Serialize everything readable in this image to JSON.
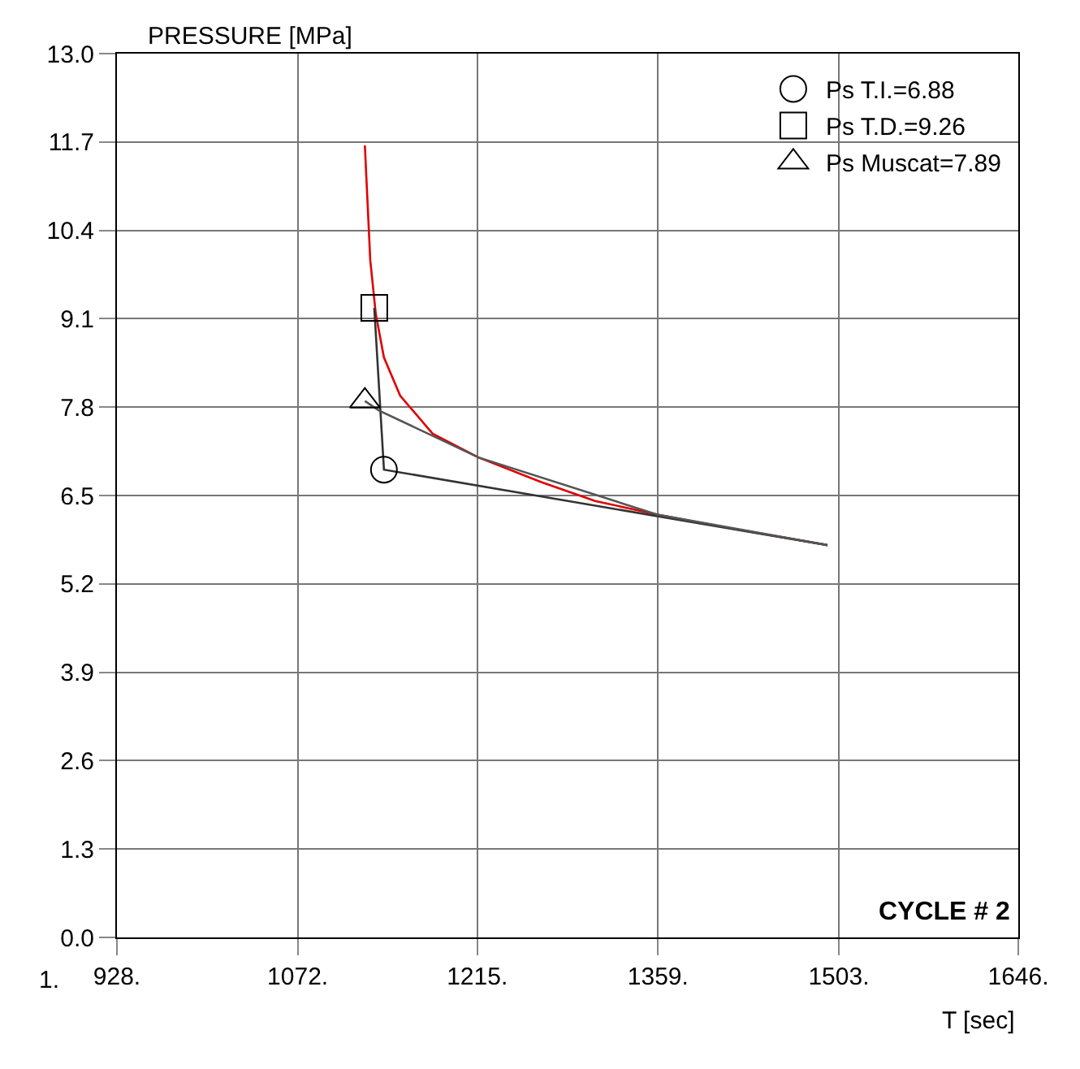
{
  "chart_data": {
    "type": "line",
    "xlabel": "T [sec]",
    "ylabel": "PRESSURE [MPa]",
    "xlim": [
      928,
      1646
    ],
    "xticks": [
      {
        "value": 928,
        "label": "928."
      },
      {
        "value": 1072,
        "label": "1072."
      },
      {
        "value": 1215,
        "label": "1215."
      },
      {
        "value": 1359,
        "label": "1359."
      },
      {
        "value": 1503,
        "label": "1503."
      },
      {
        "value": 1646,
        "label": "1646."
      }
    ],
    "ylim": [
      0,
      13
    ],
    "yticks": [
      {
        "value": 0,
        "label": "0.0"
      },
      1.3,
      2.6,
      3.9,
      5.2,
      6.5,
      7.8,
      9.1,
      10.4,
      11.7,
      {
        "value": 13,
        "label": "13.0"
      }
    ],
    "grid": true,
    "legend": "top right",
    "series": [
      {
        "color": "#e00000",
        "marker": "none",
        "x": [
          1125.5,
          1129.8,
          1134.2,
          1140.7,
          1153.6,
          1179.5,
          1216,
          1265.6,
          1308.9,
          1358.4,
          1416.6,
          1494
        ],
        "values": [
          11.65,
          9.96,
          9.17,
          8.53,
          7.97,
          7.41,
          7.06,
          6.7,
          6.42,
          6.22,
          6.02,
          5.77
        ]
      },
      {
        "color": "#333333",
        "marker": "none",
        "x": [
          1133,
          1140.7,
          1494
        ],
        "values": [
          9.26,
          6.88,
          5.77
        ]
      },
      {
        "color": "#555555",
        "marker": "none",
        "x": [
          1125.5,
          1136.7,
          1216,
          1358.4,
          1494
        ],
        "values": [
          7.89,
          7.75,
          7.06,
          6.22,
          5.77
        ]
      },
      {
        "type": "scatter",
        "name": "Ps T.I.=6.88",
        "color": "#000000",
        "marker": "circle",
        "x": [
          1140.7
        ],
        "values": [
          6.88
        ]
      },
      {
        "type": "scatter",
        "name": "Ps T.D.=9.26",
        "color": "#000000",
        "marker": "square",
        "x": [
          1133
        ],
        "values": [
          9.26
        ]
      },
      {
        "type": "scatter",
        "name": "Ps Muscat=7.89",
        "color": "#000000",
        "marker": "triangle",
        "x": [
          1125.5
        ],
        "values": [
          7.89
        ]
      }
    ],
    "annotations": [
      "CYCLE # 2",
      "1."
    ]
  }
}
